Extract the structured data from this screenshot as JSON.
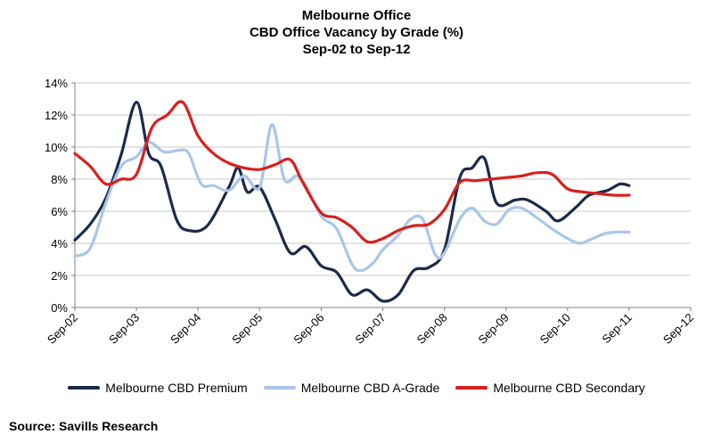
{
  "chart_data": {
    "type": "line",
    "title": [
      "Melbourne Office",
      "CBD Office Vacancy by Grade (%)",
      "Sep-02 to Sep-12"
    ],
    "xlabel": "",
    "ylabel": "",
    "x_ticks": [
      "Sep-02",
      "Sep-03",
      "Sep-04",
      "Sep-05",
      "Sep-06",
      "Sep-07",
      "Sep-08",
      "Sep-09",
      "Sep-10",
      "Sep-11",
      "Sep-12"
    ],
    "y_ticks": [
      "0%",
      "2%",
      "4%",
      "6%",
      "8%",
      "10%",
      "12%",
      "14%"
    ],
    "ylim": [
      0,
      14
    ],
    "xlim": [
      2002.75,
      2012.75
    ],
    "grid": "horizontal",
    "legend_position": "bottom",
    "series": [
      {
        "name": "Melbourne CBD Premium",
        "color": "#1c2a4a",
        "points": [
          [
            2002.75,
            4.2
          ],
          [
            2003.0,
            5.2
          ],
          [
            2003.25,
            6.8
          ],
          [
            2003.5,
            9.5
          ],
          [
            2003.75,
            12.8
          ],
          [
            2003.95,
            9.6
          ],
          [
            2004.15,
            8.8
          ],
          [
            2004.4,
            5.5
          ],
          [
            2004.6,
            4.8
          ],
          [
            2004.9,
            5.1
          ],
          [
            2005.25,
            7.5
          ],
          [
            2005.4,
            8.7
          ],
          [
            2005.55,
            7.2
          ],
          [
            2005.75,
            7.5
          ],
          [
            2006.0,
            5.5
          ],
          [
            2006.25,
            3.4
          ],
          [
            2006.5,
            3.8
          ],
          [
            2006.75,
            2.6
          ],
          [
            2007.0,
            2.2
          ],
          [
            2007.25,
            0.8
          ],
          [
            2007.5,
            1.1
          ],
          [
            2007.75,
            0.4
          ],
          [
            2008.0,
            0.8
          ],
          [
            2008.25,
            2.3
          ],
          [
            2008.5,
            2.5
          ],
          [
            2008.75,
            3.6
          ],
          [
            2009.0,
            8.1
          ],
          [
            2009.2,
            8.7
          ],
          [
            2009.4,
            9.3
          ],
          [
            2009.6,
            6.5
          ],
          [
            2009.9,
            6.7
          ],
          [
            2010.1,
            6.7
          ],
          [
            2010.4,
            6.0
          ],
          [
            2010.6,
            5.4
          ],
          [
            2010.9,
            6.3
          ],
          [
            2011.1,
            7.0
          ],
          [
            2011.4,
            7.3
          ],
          [
            2011.6,
            7.7
          ],
          [
            2011.75,
            7.6
          ]
        ]
      },
      {
        "name": "Melbourne CBD A-Grade",
        "color": "#a9c6e8",
        "points": [
          [
            2002.75,
            3.2
          ],
          [
            2003.0,
            3.7
          ],
          [
            2003.25,
            6.5
          ],
          [
            2003.5,
            8.8
          ],
          [
            2003.75,
            9.4
          ],
          [
            2003.95,
            10.3
          ],
          [
            2004.2,
            9.7
          ],
          [
            2004.45,
            9.8
          ],
          [
            2004.6,
            9.6
          ],
          [
            2004.8,
            7.7
          ],
          [
            2005.0,
            7.6
          ],
          [
            2005.25,
            7.3
          ],
          [
            2005.5,
            8.2
          ],
          [
            2005.75,
            7.5
          ],
          [
            2005.95,
            11.4
          ],
          [
            2006.15,
            8.0
          ],
          [
            2006.35,
            8.2
          ],
          [
            2006.5,
            7.6
          ],
          [
            2006.75,
            5.7
          ],
          [
            2007.0,
            4.9
          ],
          [
            2007.25,
            2.7
          ],
          [
            2007.4,
            2.3
          ],
          [
            2007.6,
            2.8
          ],
          [
            2007.75,
            3.6
          ],
          [
            2008.0,
            4.5
          ],
          [
            2008.2,
            5.5
          ],
          [
            2008.4,
            5.5
          ],
          [
            2008.6,
            3.3
          ],
          [
            2008.75,
            3.4
          ],
          [
            2009.0,
            5.5
          ],
          [
            2009.2,
            6.2
          ],
          [
            2009.4,
            5.4
          ],
          [
            2009.6,
            5.2
          ],
          [
            2009.8,
            6.1
          ],
          [
            2010.0,
            6.2
          ],
          [
            2010.25,
            5.6
          ],
          [
            2010.5,
            4.9
          ],
          [
            2010.75,
            4.3
          ],
          [
            2010.95,
            4.0
          ],
          [
            2011.1,
            4.2
          ],
          [
            2011.35,
            4.6
          ],
          [
            2011.55,
            4.7
          ],
          [
            2011.75,
            4.7
          ]
        ]
      },
      {
        "name": "Melbourne CBD Secondary",
        "color": "#d8201d",
        "points": [
          [
            2002.75,
            9.6
          ],
          [
            2003.0,
            8.8
          ],
          [
            2003.25,
            7.7
          ],
          [
            2003.5,
            8.0
          ],
          [
            2003.75,
            8.3
          ],
          [
            2004.0,
            11.2
          ],
          [
            2004.25,
            12.0
          ],
          [
            2004.5,
            12.8
          ],
          [
            2004.75,
            10.7
          ],
          [
            2005.0,
            9.6
          ],
          [
            2005.25,
            9.0
          ],
          [
            2005.5,
            8.7
          ],
          [
            2005.75,
            8.6
          ],
          [
            2006.0,
            8.9
          ],
          [
            2006.25,
            9.2
          ],
          [
            2006.45,
            7.8
          ],
          [
            2006.75,
            5.9
          ],
          [
            2007.0,
            5.6
          ],
          [
            2007.25,
            5.0
          ],
          [
            2007.5,
            4.1
          ],
          [
            2007.75,
            4.3
          ],
          [
            2008.0,
            4.8
          ],
          [
            2008.25,
            5.1
          ],
          [
            2008.5,
            5.2
          ],
          [
            2008.75,
            6.1
          ],
          [
            2009.0,
            7.8
          ],
          [
            2009.25,
            7.9
          ],
          [
            2009.5,
            8.0
          ],
          [
            2009.75,
            8.1
          ],
          [
            2010.0,
            8.2
          ],
          [
            2010.25,
            8.4
          ],
          [
            2010.5,
            8.3
          ],
          [
            2010.75,
            7.4
          ],
          [
            2011.0,
            7.2
          ],
          [
            2011.25,
            7.1
          ],
          [
            2011.5,
            7.0
          ],
          [
            2011.75,
            7.0
          ]
        ]
      }
    ]
  },
  "legend": [
    {
      "label": "Melbourne CBD Premium",
      "color": "#1c2a4a"
    },
    {
      "label": "Melbourne CBD A-Grade",
      "color": "#a9c6e8"
    },
    {
      "label": "Melbourne CBD Secondary",
      "color": "#d8201d"
    }
  ],
  "source": "Source: Savills Research"
}
